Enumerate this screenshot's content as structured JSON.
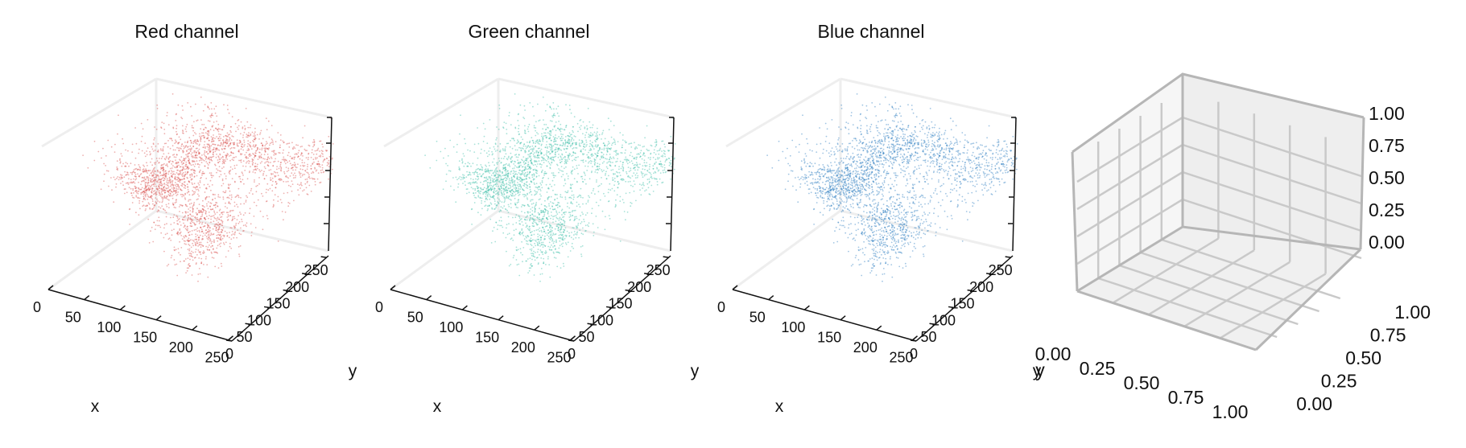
{
  "chart_data": [
    {
      "type": "scatter3d",
      "title": "Red channel",
      "color": "#d9534f",
      "xlabel": "x",
      "ylabel": "y",
      "xlim": [
        0,
        255
      ],
      "ylim": [
        0,
        255
      ],
      "x_ticks": [
        "0",
        "50",
        "100",
        "150",
        "200",
        "250"
      ],
      "y_ticks": [
        "0",
        "50",
        "100",
        "150",
        "200",
        "250"
      ],
      "grid": false,
      "clusters": [
        {
          "x": 70,
          "y": 150,
          "count": 700
        },
        {
          "x": 95,
          "y": 215,
          "count": 600
        },
        {
          "x": 185,
          "y": 55,
          "count": 800
        },
        {
          "x": 210,
          "y": 160,
          "count": 450
        },
        {
          "x": 245,
          "y": 250,
          "count": 450
        }
      ]
    },
    {
      "type": "scatter3d",
      "title": "Green channel",
      "color": "#3dbfa8",
      "xlabel": "x",
      "ylabel": "y",
      "xlim": [
        0,
        255
      ],
      "ylim": [
        0,
        255
      ],
      "x_ticks": [
        "0",
        "50",
        "100",
        "150",
        "200",
        "250"
      ],
      "y_ticks": [
        "0",
        "50",
        "100",
        "150",
        "200",
        "250"
      ],
      "grid": false,
      "clusters": [
        {
          "x": 70,
          "y": 150,
          "count": 700
        },
        {
          "x": 95,
          "y": 215,
          "count": 600
        },
        {
          "x": 185,
          "y": 55,
          "count": 800
        },
        {
          "x": 210,
          "y": 160,
          "count": 450
        },
        {
          "x": 245,
          "y": 250,
          "count": 450
        }
      ]
    },
    {
      "type": "scatter3d",
      "title": "Blue channel",
      "color": "#2e7fc0",
      "xlabel": "x",
      "ylabel": "y",
      "xlim": [
        0,
        255
      ],
      "ylim": [
        0,
        255
      ],
      "x_ticks": [
        "0",
        "50",
        "100",
        "150",
        "200",
        "250"
      ],
      "y_ticks": [
        "0",
        "50",
        "100",
        "150",
        "200",
        "250"
      ],
      "grid": false,
      "clusters": [
        {
          "x": 70,
          "y": 150,
          "count": 700
        },
        {
          "x": 95,
          "y": 215,
          "count": 600
        },
        {
          "x": 185,
          "y": 55,
          "count": 800
        },
        {
          "x": 210,
          "y": 160,
          "count": 450
        },
        {
          "x": 245,
          "y": 250,
          "count": 450
        }
      ]
    },
    {
      "type": "empty3d",
      "title": "",
      "xlabel": "",
      "ylabel": "y",
      "xlim": [
        0,
        1
      ],
      "ylim": [
        0,
        1
      ],
      "zlim": [
        0,
        1
      ],
      "x_ticks": [
        "0.00",
        "0.25",
        "0.50",
        "0.75",
        "1.00"
      ],
      "y_ticks": [
        "0.00",
        "0.25",
        "0.50",
        "0.75",
        "1.00"
      ],
      "z_ticks": [
        "0.00",
        "0.25",
        "0.50",
        "0.75",
        "1.00"
      ],
      "grid": true
    }
  ]
}
